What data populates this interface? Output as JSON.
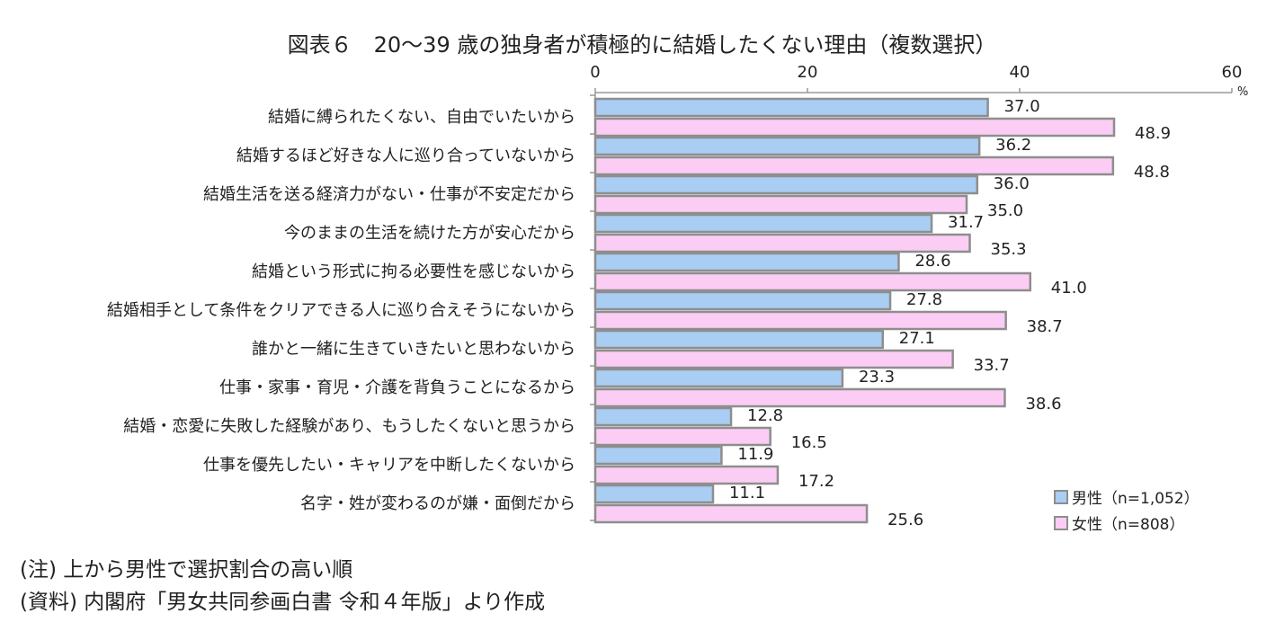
{
  "title": "図表６　20～39 歳の独身者が積極的に結婚したくない理由（複数選択）",
  "notes": [
    "(注) 上から男性で選択割合の高い順",
    "(資料) 内閣府「男女共同参画白書 令和４年版」より作成"
  ],
  "colors": {
    "male": "#a9cdf3",
    "female": "#fbcdf4",
    "border": "#8e8e8e"
  },
  "chart_data": {
    "type": "bar",
    "orientation": "horizontal",
    "title": "図表６　20～39 歳の独身者が積極的に結婚したくない理由（複数選択）",
    "xlim": [
      0,
      60
    ],
    "xticks": [
      "0",
      "20",
      "40",
      "60"
    ],
    "unit": "%",
    "categories": [
      "結婚に縛られたくない、自由でいたいから",
      "結婚するほど好きな人に巡り合っていないから",
      "結婚生活を送る経済力がない・仕事が不安定だから",
      "今のままの生活を続けた方が安心だから",
      "結婚という形式に拘る必要性を感じないから",
      "結婚相手として条件をクリアできる人に巡り合えそうにないから",
      "誰かと一緒に生きていきたいと思わないから",
      "仕事・家事・育児・介護を背負うことになるから",
      "結婚・恋愛に失敗した経験があり、もうしたくないと思うから",
      "仕事を優先したい・キャリアを中断したくないから",
      "名字・姓が変わるのが嫌・面倒だから"
    ],
    "series": [
      {
        "name": "男性（n=1,052）",
        "values": [
          37.0,
          36.2,
          36.0,
          31.7,
          28.6,
          27.8,
          27.1,
          23.3,
          12.8,
          11.9,
          11.1
        ]
      },
      {
        "name": "女性（n=808）",
        "values": [
          48.9,
          48.8,
          35.0,
          35.3,
          41.0,
          38.7,
          33.7,
          38.6,
          16.5,
          17.2,
          25.6
        ]
      }
    ],
    "legend_position": "bottom-right",
    "grid": false
  }
}
